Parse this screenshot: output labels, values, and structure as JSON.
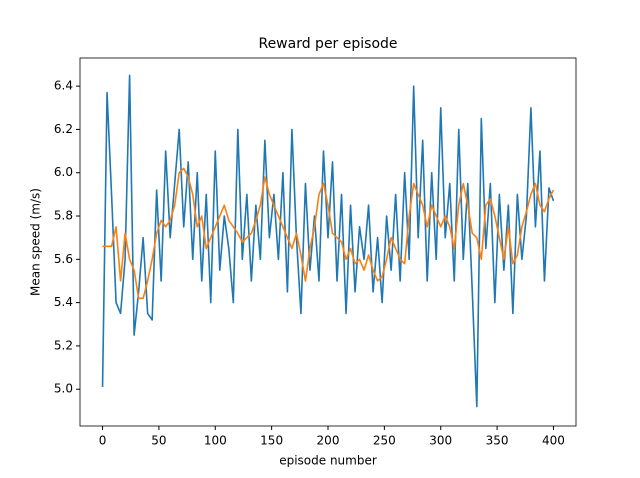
{
  "chart_data": {
    "type": "line",
    "title": "Reward per episode",
    "x_label": "episode number",
    "y_label": "Mean speed (m/s)",
    "x": [
      0,
      4,
      8,
      12,
      16,
      20,
      24,
      28,
      32,
      36,
      40,
      44,
      48,
      52,
      56,
      60,
      64,
      68,
      72,
      76,
      80,
      84,
      88,
      92,
      96,
      100,
      104,
      108,
      112,
      116,
      120,
      124,
      128,
      132,
      136,
      140,
      144,
      148,
      152,
      156,
      160,
      164,
      168,
      172,
      176,
      180,
      184,
      188,
      192,
      196,
      200,
      204,
      208,
      212,
      216,
      220,
      224,
      228,
      232,
      236,
      240,
      244,
      248,
      252,
      256,
      260,
      264,
      268,
      272,
      276,
      280,
      284,
      288,
      292,
      296,
      300,
      304,
      308,
      312,
      316,
      320,
      324,
      328,
      332,
      336,
      340,
      344,
      348,
      352,
      356,
      360,
      364,
      368,
      372,
      376,
      380,
      384,
      388,
      392,
      396,
      400
    ],
    "series": [
      {
        "color": "#1f77b4",
        "values": [
          5.01,
          6.37,
          5.9,
          5.4,
          5.35,
          5.6,
          6.45,
          5.25,
          5.45,
          5.7,
          5.35,
          5.32,
          5.92,
          5.5,
          6.1,
          5.7,
          5.95,
          6.2,
          5.75,
          6.05,
          5.6,
          6.0,
          5.5,
          5.9,
          5.4,
          6.1,
          5.55,
          5.8,
          5.65,
          5.4,
          6.2,
          5.6,
          5.9,
          5.5,
          5.85,
          5.6,
          6.15,
          5.7,
          5.9,
          5.6,
          6.0,
          5.45,
          6.2,
          5.7,
          5.35,
          5.95,
          5.55,
          5.8,
          5.5,
          6.1,
          5.7,
          6.05,
          5.5,
          5.9,
          5.35,
          5.85,
          5.45,
          5.75,
          5.6,
          5.85,
          5.45,
          5.7,
          5.4,
          5.8,
          5.55,
          5.9,
          5.5,
          6.0,
          5.6,
          6.4,
          5.7,
          6.15,
          5.5,
          6.0,
          5.6,
          6.3,
          5.7,
          5.95,
          5.5,
          6.2,
          5.6,
          5.95,
          5.45,
          4.92,
          6.25,
          5.65,
          5.95,
          5.4,
          5.9,
          5.55,
          5.85,
          5.35,
          5.9,
          5.6,
          5.8,
          6.3,
          5.75,
          6.1,
          5.5,
          5.93,
          5.87
        ]
      },
      {
        "color": "#ff7f0e",
        "values": [
          5.66,
          5.66,
          5.66,
          5.75,
          5.5,
          5.72,
          5.6,
          5.55,
          5.42,
          5.42,
          5.5,
          5.6,
          5.72,
          5.78,
          5.75,
          5.78,
          5.85,
          6.0,
          6.02,
          5.98,
          5.9,
          5.75,
          5.8,
          5.65,
          5.7,
          5.75,
          5.8,
          5.85,
          5.78,
          5.75,
          5.72,
          5.68,
          5.7,
          5.72,
          5.78,
          5.85,
          5.98,
          5.9,
          5.85,
          5.8,
          5.75,
          5.7,
          5.65,
          5.72,
          5.62,
          5.5,
          5.65,
          5.75,
          5.9,
          5.95,
          5.85,
          5.72,
          5.7,
          5.68,
          5.6,
          5.65,
          5.58,
          5.6,
          5.55,
          5.62,
          5.55,
          5.5,
          5.52,
          5.6,
          5.7,
          5.65,
          5.6,
          5.58,
          5.8,
          5.95,
          5.9,
          5.85,
          5.75,
          5.85,
          5.8,
          5.75,
          5.8,
          5.75,
          5.65,
          5.85,
          5.95,
          5.85,
          5.72,
          5.7,
          5.6,
          5.85,
          5.88,
          5.8,
          5.7,
          5.6,
          5.75,
          5.58,
          5.62,
          5.75,
          5.82,
          5.9,
          5.95,
          5.85,
          5.82,
          5.88,
          5.92
        ]
      }
    ],
    "xlim": [
      -20,
      420
    ],
    "xticks": [
      0,
      50,
      100,
      150,
      200,
      250,
      300,
      350,
      400
    ],
    "ylim": [
      4.83,
      6.53
    ],
    "yticks": [
      {
        "value": 5,
        "label": "5.0"
      },
      5.2,
      5.4,
      5.6,
      5.8,
      {
        "value": 6,
        "label": "6.0"
      },
      6.2,
      6.4
    ]
  }
}
